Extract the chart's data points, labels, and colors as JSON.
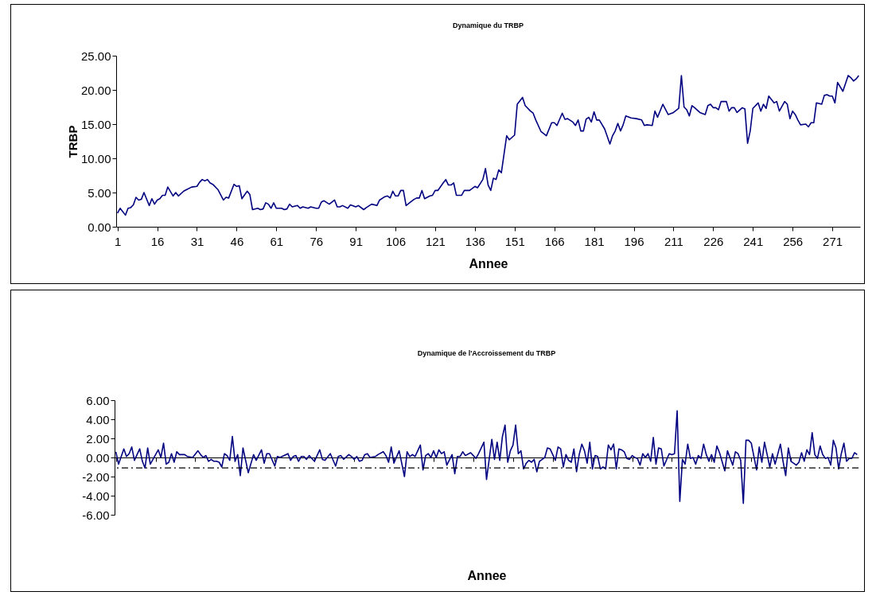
{
  "chart_data": [
    {
      "type": "line",
      "title": "Dynamique du TRBP",
      "xlabel": "Annee",
      "ylabel": "TRBP",
      "xlim": [
        0.5,
        281.5
      ],
      "xticks": [
        1,
        16,
        31,
        46,
        61,
        76,
        91,
        106,
        121,
        136,
        151,
        166,
        181,
        196,
        211,
        226,
        241,
        256,
        271
      ],
      "ylim": [
        0,
        25
      ],
      "yticks": [
        {
          "value": 0,
          "label": "0.00"
        },
        {
          "value": 5,
          "label": "5.00"
        },
        {
          "value": 10,
          "label": "10.00"
        },
        {
          "value": 15,
          "label": "15.00"
        },
        {
          "value": 20,
          "label": "20.00"
        },
        {
          "value": 25,
          "label": "25.00"
        }
      ],
      "series": [
        {
          "color": "#000080",
          "x": [
            1,
            2,
            4,
            5,
            6,
            7,
            8,
            9,
            10,
            11,
            13,
            14,
            15,
            16,
            17,
            18,
            19,
            20,
            22,
            23,
            24,
            26,
            27,
            29,
            31,
            32,
            33,
            34,
            35,
            36,
            37,
            39,
            41,
            42,
            43,
            45,
            46,
            47,
            48,
            50,
            51,
            52,
            54,
            55,
            56,
            57,
            58,
            59,
            60,
            61,
            63,
            64,
            65,
            66,
            67,
            69,
            70,
            71,
            73,
            74,
            76,
            77,
            78,
            79,
            81,
            83,
            84,
            85,
            86,
            88,
            89,
            91,
            92,
            94,
            95,
            97,
            99,
            100,
            102,
            103,
            104,
            105,
            106,
            107,
            108,
            109,
            110,
            112,
            113,
            114,
            115,
            116,
            117,
            119,
            120,
            121,
            122,
            124,
            125,
            126,
            127,
            128,
            129,
            131,
            132,
            134,
            136,
            137,
            139,
            140,
            141,
            142,
            143,
            144,
            145,
            146,
            148,
            149,
            151,
            152,
            154,
            155,
            157,
            158,
            159,
            161,
            163,
            165,
            166,
            167,
            169,
            170,
            171,
            173,
            174,
            175,
            176,
            177,
            178,
            179,
            180,
            181,
            182,
            183,
            185,
            187,
            188,
            189,
            190,
            191,
            192,
            193,
            195,
            197,
            199,
            200,
            201,
            203,
            204,
            205,
            207,
            209,
            211,
            213,
            214,
            215,
            216,
            217,
            218,
            219,
            221,
            223,
            224,
            225,
            226,
            227,
            228,
            229,
            231,
            232,
            233,
            234,
            235,
            237,
            238,
            239,
            240,
            241,
            243,
            244,
            245,
            246,
            247,
            249,
            250,
            251,
            253,
            254,
            255,
            256,
            257,
            258,
            259,
            261,
            262,
            263,
            264,
            265,
            267,
            268,
            269,
            270,
            271,
            272,
            273,
            275,
            277,
            278,
            279,
            280,
            281
          ],
          "values": [
            2.0,
            2.7,
            1.7,
            2.7,
            2.8,
            3.2,
            4.3,
            3.9,
            4.0,
            5.0,
            3.1,
            4.1,
            3.3,
            3.9,
            4.1,
            4.6,
            4.6,
            5.8,
            4.5,
            5.0,
            4.5,
            5.2,
            5.4,
            5.8,
            5.9,
            6.5,
            6.9,
            6.7,
            6.9,
            6.4,
            6.2,
            5.4,
            3.9,
            4.3,
            4.2,
            6.2,
            5.9,
            6.0,
            4.1,
            5.2,
            4.7,
            2.5,
            2.7,
            2.5,
            2.6,
            3.5,
            3.3,
            2.7,
            3.5,
            2.7,
            2.7,
            2.5,
            2.6,
            3.3,
            2.9,
            3.1,
            2.7,
            2.9,
            2.7,
            2.9,
            2.7,
            2.7,
            3.6,
            3.8,
            3.3,
            3.9,
            2.9,
            2.9,
            3.1,
            2.7,
            3.2,
            2.9,
            3.1,
            2.5,
            2.8,
            3.3,
            3.1,
            3.9,
            4.4,
            4.5,
            4.2,
            5.2,
            4.5,
            4.5,
            5.3,
            5.3,
            3.1,
            3.7,
            4.0,
            4.2,
            4.2,
            5.3,
            4.1,
            4.5,
            4.6,
            5.3,
            5.3,
            6.4,
            6.9,
            6.1,
            6.1,
            6.4,
            4.6,
            4.6,
            5.3,
            5.3,
            5.9,
            5.7,
            6.9,
            8.5,
            6.1,
            5.3,
            7.1,
            6.9,
            8.3,
            7.9,
            13.3,
            12.7,
            13.4,
            17.9,
            18.9,
            17.7,
            16.9,
            16.6,
            15.6,
            13.9,
            13.3,
            15.2,
            15.2,
            14.8,
            16.6,
            15.7,
            15.8,
            15.3,
            14.8,
            15.6,
            14.0,
            14.0,
            15.7,
            16.0,
            15.3,
            16.8,
            15.6,
            15.6,
            14.3,
            12.1,
            13.3,
            14.0,
            15.1,
            14.0,
            14.9,
            16.2,
            15.9,
            15.8,
            15.6,
            14.8,
            14.9,
            14.8,
            16.9,
            16.0,
            17.9,
            16.4,
            16.7,
            17.3,
            22.1,
            17.5,
            17.1,
            16.2,
            17.7,
            17.4,
            16.7,
            16.4,
            17.7,
            17.9,
            17.4,
            17.4,
            17.1,
            18.3,
            18.3,
            16.9,
            17.4,
            17.4,
            16.7,
            17.4,
            17.2,
            12.2,
            14.0,
            17.3,
            18.1,
            16.9,
            17.9,
            17.3,
            19.1,
            18.1,
            18.3,
            16.9,
            18.3,
            17.9,
            15.8,
            16.9,
            16.4,
            15.6,
            14.9,
            15.0,
            14.6,
            15.2,
            15.2,
            18.1,
            17.9,
            19.2,
            19.3,
            19.1,
            19.1,
            18.1,
            21.1,
            19.8,
            22.1,
            21.8,
            21.3,
            21.6,
            22.1
          ]
        }
      ]
    },
    {
      "type": "line",
      "title": "Dynamique de l'Accroissement du TRBP",
      "xlabel": "Annee",
      "xlim": [
        0.5,
        281.5
      ],
      "xticks": [
        {
          "value": 1,
          "label": null
        },
        {
          "value": 16,
          "label": null
        },
        {
          "value": 31,
          "label": null
        },
        {
          "value": 46,
          "label": null
        },
        {
          "value": 61,
          "label": null
        },
        {
          "value": 76,
          "label": null
        },
        {
          "value": 91,
          "label": null
        },
        {
          "value": 106,
          "label": null
        },
        {
          "value": 121,
          "label": null
        },
        {
          "value": 136,
          "label": null
        },
        {
          "value": 151,
          "label": null
        },
        {
          "value": 166,
          "label": null
        },
        {
          "value": 181,
          "label": null
        },
        {
          "value": 196,
          "label": null
        },
        {
          "value": 211,
          "label": null
        },
        {
          "value": 226,
          "label": null
        },
        {
          "value": 241,
          "label": null
        },
        {
          "value": 256,
          "label": null
        },
        {
          "value": 271,
          "label": null
        }
      ],
      "ylim": [
        -6,
        6
      ],
      "yticks": [
        {
          "value": -6,
          "label": "-6.00"
        },
        {
          "value": -4,
          "label": "-4.00"
        },
        {
          "value": -2,
          "label": "-2.00"
        },
        {
          "value": 0,
          "label": "0.00"
        },
        {
          "value": 2,
          "label": "2.00"
        },
        {
          "value": 4,
          "label": "4.00"
        },
        {
          "value": 6,
          "label": "6.00"
        }
      ],
      "tick_labels": "y",
      "ref_lines": [
        {
          "axis": "y",
          "value": -1.1,
          "color": "#000000",
          "line_style": "dashed"
        }
      ],
      "series": [
        {
          "color": "#000080",
          "x": [
            1,
            2,
            4,
            5,
            6,
            7,
            8,
            10,
            11,
            12,
            13,
            14,
            16,
            17,
            18,
            19,
            20,
            21,
            22,
            23,
            24,
            25,
            27,
            28,
            30,
            32,
            33,
            34,
            35,
            36,
            37,
            38,
            39,
            40,
            41,
            42,
            43,
            44,
            45,
            46,
            47,
            48,
            49,
            51,
            53,
            54,
            56,
            57,
            58,
            59,
            61,
            62,
            63,
            66,
            67,
            68,
            69,
            70,
            71,
            72,
            73,
            74,
            76,
            78,
            79,
            80,
            82,
            84,
            85,
            86,
            87,
            89,
            90,
            91,
            92,
            93,
            94,
            95,
            96,
            97,
            99,
            100,
            102,
            103,
            104,
            105,
            106,
            108,
            110,
            111,
            112,
            113,
            114,
            116,
            117,
            118,
            119,
            120,
            121,
            122,
            123,
            124,
            125,
            126,
            128,
            129,
            130,
            131,
            132,
            133,
            135,
            136,
            137,
            138,
            140,
            141,
            143,
            144,
            145,
            146,
            147,
            148,
            149,
            150,
            151,
            152,
            153,
            154,
            155,
            156,
            157,
            158,
            159,
            160,
            161,
            163,
            164,
            165,
            167,
            168,
            169,
            170,
            171,
            172,
            173,
            174,
            175,
            176,
            177,
            178,
            179,
            180,
            181,
            182,
            183,
            184,
            185,
            186,
            187,
            188,
            189,
            190,
            191,
            192,
            193,
            194,
            195,
            196,
            197,
            198,
            199,
            200,
            201,
            202,
            203,
            204,
            205,
            206,
            207,
            208,
            210,
            211,
            212,
            213,
            214,
            215,
            216,
            217,
            218,
            219,
            220,
            221,
            222,
            223,
            224,
            225,
            226,
            227,
            228,
            229,
            231,
            232,
            234,
            235,
            236,
            237,
            238,
            239,
            240,
            241,
            243,
            244,
            245,
            246,
            248,
            249,
            250,
            252,
            253,
            254,
            255,
            256,
            258,
            259,
            260,
            261,
            262,
            263,
            264,
            265,
            266,
            267,
            268,
            269,
            270,
            271,
            272,
            273,
            274,
            275,
            276,
            277,
            278,
            279,
            280,
            281
          ],
          "values": [
            0.6,
            -0.7,
            0.9,
            0.1,
            0.4,
            1.1,
            -0.3,
            0.9,
            -0.4,
            -1.1,
            1.0,
            -0.7,
            0.3,
            0.8,
            0.0,
            1.5,
            -0.7,
            -0.5,
            0.4,
            -0.5,
            0.6,
            0.3,
            0.3,
            0.1,
            0.0,
            0.7,
            0.3,
            0.0,
            0.2,
            -0.4,
            -0.2,
            -0.4,
            -0.4,
            -0.5,
            -1.0,
            0.4,
            0.2,
            -0.3,
            2.2,
            -0.4,
            0.3,
            -1.9,
            1.0,
            -1.6,
            0.3,
            -0.3,
            0.8,
            -0.6,
            0.4,
            0.4,
            -0.9,
            0.1,
            0.0,
            0.4,
            -0.3,
            0.1,
            0.2,
            -0.4,
            0.1,
            0.1,
            -0.2,
            0.2,
            -0.4,
            0.8,
            -0.2,
            -0.3,
            0.4,
            -0.9,
            0.1,
            0.2,
            -0.2,
            0.3,
            0.1,
            -0.2,
            0.1,
            -0.4,
            -0.3,
            0.3,
            0.4,
            0.0,
            0.1,
            0.3,
            0.6,
            0.2,
            -0.5,
            1.1,
            -0.6,
            0.7,
            -2.0,
            0.6,
            0.1,
            0.3,
            0.1,
            1.3,
            -1.3,
            0.2,
            0.4,
            0.0,
            0.7,
            0.0,
            0.8,
            0.4,
            0.6,
            -0.8,
            0.3,
            -1.7,
            0.1,
            0.1,
            0.6,
            0.2,
            0.5,
            0.2,
            -0.1,
            0.4,
            1.6,
            -2.3,
            1.9,
            -0.2,
            1.6,
            -0.3,
            2.2,
            3.4,
            -0.5,
            0.7,
            1.3,
            3.4,
            0.4,
            0.7,
            -1.2,
            -0.6,
            -0.3,
            -0.5,
            -0.2,
            -1.5,
            -0.4,
            0.0,
            1.0,
            0.9,
            -0.3,
            1.1,
            0.9,
            -1.0,
            0.3,
            -0.3,
            -0.5,
            0.9,
            -1.5,
            0.3,
            1.4,
            0.7,
            -0.6,
            1.6,
            -1.2,
            0.2,
            0.1,
            -1.2,
            -1.0,
            -1.2,
            1.3,
            0.8,
            1.4,
            -1.2,
            0.9,
            0.8,
            0.6,
            -0.1,
            -0.2,
            0.2,
            0.0,
            -0.1,
            -0.8,
            0.4,
            0.0,
            0.4,
            -0.4,
            2.1,
            -0.7,
            1.0,
            0.9,
            -0.9,
            0.4,
            0.3,
            0.4,
            4.9,
            -4.6,
            -0.2,
            -0.7,
            1.4,
            -0.1,
            0.0,
            -0.7,
            0.2,
            -0.1,
            1.4,
            0.3,
            -0.4,
            0.3,
            -0.5,
            1.2,
            0.5,
            -1.4,
            0.7,
            -0.8,
            0.6,
            0.4,
            -0.3,
            -4.8,
            1.8,
            1.8,
            1.5,
            -1.3,
            1.1,
            -0.5,
            1.6,
            -1.0,
            0.4,
            -0.7,
            1.4,
            -0.4,
            -1.9,
            1.0,
            -0.4,
            -0.8,
            -0.5,
            0.5,
            -0.4,
            0.8,
            0.3,
            2.6,
            0.3,
            -0.1,
            1.2,
            0.3,
            -0.1,
            0.0,
            -0.8,
            1.8,
            1.0,
            -1.2,
            0.4,
            1.5,
            -0.4,
            -0.1,
            -0.1,
            0.5,
            0.3
          ]
        }
      ]
    }
  ]
}
